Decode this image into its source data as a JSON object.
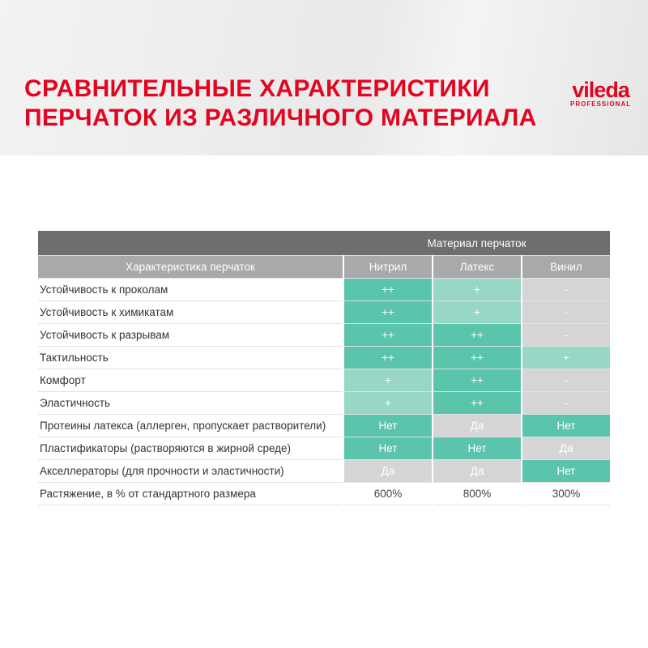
{
  "title": {
    "line1": "СРАВНИТЕЛЬНЫЕ ХАРАКТЕРИСТИКИ",
    "line2": "ПЕРЧАТОК ИЗ РАЗЛИЧНОГО МАТЕРИАЛА"
  },
  "logo": {
    "brand": "vileda",
    "sub": "PROFESSIONAL"
  },
  "colors": {
    "title": "#e30520",
    "strong": "#5bc4ac",
    "medium": "#98d6c5",
    "neutral": "#d5d5d6",
    "header": "#6d6e70",
    "subheader": "#a8a9ab"
  },
  "table": {
    "group_header": "Материал перчаток",
    "headers": [
      "Характеристика перчаток",
      "Нитрил",
      "Латекс",
      "Винил"
    ],
    "rows": [
      {
        "label": "Устойчивость к проколам",
        "values": [
          "++",
          "+",
          "-"
        ]
      },
      {
        "label": "Устойчивость к химикатам",
        "values": [
          "++",
          "+",
          "-"
        ]
      },
      {
        "label": "Устойчивость к разрывам",
        "values": [
          "++",
          "++",
          "-"
        ]
      },
      {
        "label": "Тактильность",
        "values": [
          "++",
          "++",
          "+"
        ]
      },
      {
        "label": "Комфорт",
        "values": [
          "+",
          "++",
          "-"
        ]
      },
      {
        "label": "Эластичность",
        "values": [
          "+",
          "++",
          "-"
        ]
      },
      {
        "label": "Протеины латекса (аллерген, пропускает растворители)",
        "values": [
          "Нет",
          "Да",
          "Нет"
        ]
      },
      {
        "label": "Пластификаторы (растворяются в жирной среде)",
        "values": [
          "Нет",
          "Нет",
          "Да"
        ]
      },
      {
        "label": "Акселлераторы (для прочности и эластичности)",
        "values": [
          "Да",
          "Да",
          "Нет"
        ]
      },
      {
        "label": "Растяжение, в % от стандартного размера",
        "values": [
          "600%",
          "800%",
          "300%"
        ]
      }
    ]
  }
}
